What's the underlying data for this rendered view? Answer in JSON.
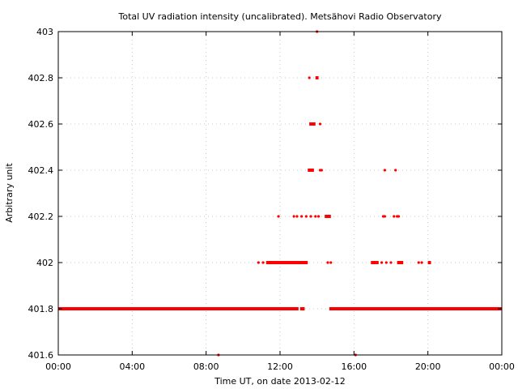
{
  "chart_data": {
    "type": "scatter",
    "title": "Total UV radiation intensity (uncalibrated). Metsähovi Radio Observatory",
    "xlabel": "Time UT, on date 2013-02-12",
    "ylabel": "Arbitrary unit",
    "xlim": [
      "00:00",
      "24:00"
    ],
    "ylim": [
      401.6,
      403.0
    ],
    "x_ticks": [
      "00:00",
      "04:00",
      "08:00",
      "12:00",
      "16:00",
      "20:00",
      "00:00"
    ],
    "y_ticks": [
      "401.6",
      "401.8",
      "402",
      "402.2",
      "402.4",
      "402.6",
      "402.8",
      "403"
    ],
    "grid": true,
    "marker_color": "#ff0000",
    "levels": [
      {
        "y": 401.8,
        "segments": [
          [
            "00:00",
            "13:00"
          ],
          [
            "13:05",
            "13:20"
          ],
          [
            "14:40",
            "24:00"
          ]
        ],
        "points": []
      },
      {
        "y": 402.0,
        "segments": [
          [
            "11:15",
            "13:30"
          ],
          [
            "16:55",
            "17:20"
          ],
          [
            "18:20",
            "18:40"
          ],
          [
            "20:00",
            "20:10"
          ]
        ],
        "points": [
          "10:50",
          "11:05",
          "14:35",
          "14:45",
          "17:30",
          "17:45",
          "18:00",
          "19:30",
          "19:40"
        ]
      },
      {
        "y": 402.2,
        "segments": [
          [
            "14:25",
            "14:45"
          ]
        ],
        "points": [
          "11:55",
          "12:45",
          "12:55",
          "13:10",
          "13:25",
          "13:40",
          "13:55",
          "14:05",
          "17:35",
          "17:40",
          "18:10",
          "18:20",
          "18:25"
        ]
      },
      {
        "y": 402.4,
        "segments": [
          [
            "13:30",
            "13:50"
          ]
        ],
        "points": [
          "14:10",
          "14:15",
          "17:40",
          "18:15"
        ]
      },
      {
        "y": 402.6,
        "segments": [
          [
            "13:35",
            "13:55"
          ]
        ],
        "points": [
          "14:10"
        ]
      },
      {
        "y": 402.8,
        "segments": [
          [
            "13:55",
            "14:05"
          ]
        ],
        "points": [
          "13:35"
        ]
      },
      {
        "y": 403.0,
        "segments": [],
        "points": [
          "14:00"
        ]
      },
      {
        "y": 401.6,
        "segments": [],
        "points": [
          "08:40",
          "16:05"
        ]
      }
    ]
  }
}
